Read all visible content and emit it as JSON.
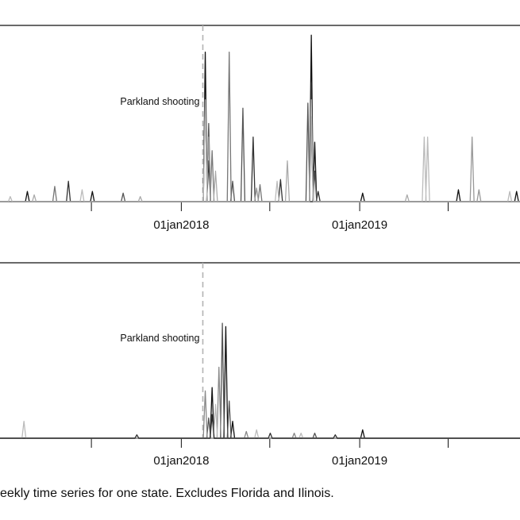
{
  "caption": "eekly time series for one state. Excludes Florida and Ilinois.",
  "chart_data": [
    {
      "type": "line",
      "x_axis": {
        "type": "date",
        "range": [
          "2016-12-26",
          "2019-11-25"
        ],
        "major_ticks": [
          {
            "date": "2018-01-01",
            "label": "01jan2018"
          },
          {
            "date": "2019-01-01",
            "label": "01jan2019"
          }
        ],
        "minor_ticks": [
          "2017-07-01",
          "2018-07-01",
          "2019-07-01"
        ]
      },
      "event_line": {
        "date": "2018-02-14",
        "label": "Parkland shooting",
        "style": "dashed"
      },
      "grid": false,
      "legend": "none",
      "y_range": [
        0,
        100
      ],
      "series": [
        {
          "color": "#111111",
          "points": [
            [
              "2017-02-20",
              6
            ],
            [
              "2017-07-03",
              6
            ],
            [
              "2018-02-19",
              88
            ],
            [
              "2018-02-26",
              24
            ],
            [
              "2018-09-24",
              98
            ],
            [
              "2018-10-01",
              35
            ],
            [
              "2019-01-07",
              5
            ],
            [
              "2019-07-22",
              7
            ],
            [
              "2019-11-18",
              6
            ]
          ]
        },
        {
          "color": "#333333",
          "points": [
            [
              "2017-05-15",
              12
            ],
            [
              "2018-02-19",
              62
            ],
            [
              "2018-05-28",
              38
            ],
            [
              "2018-07-23",
              13
            ],
            [
              "2018-09-24",
              70
            ],
            [
              "2018-10-08",
              6
            ]
          ]
        },
        {
          "color": "#555555",
          "points": [
            [
              "2017-09-04",
              5
            ],
            [
              "2018-02-26",
              46
            ],
            [
              "2018-04-16",
              12
            ],
            [
              "2018-05-07",
              55
            ],
            [
              "2018-09-17",
              58
            ],
            [
              "2018-10-01",
              18
            ]
          ]
        },
        {
          "color": "#777777",
          "points": [
            [
              "2017-04-17",
              9
            ],
            [
              "2018-03-05",
              30
            ],
            [
              "2018-04-09",
              88
            ],
            [
              "2018-06-11",
              10
            ],
            [
              "2018-09-24",
              42
            ]
          ]
        },
        {
          "color": "#999999",
          "points": [
            [
              "2018-02-26",
              38
            ],
            [
              "2018-06-04",
              8
            ],
            [
              "2018-09-24",
              44
            ],
            [
              "2019-08-19",
              38
            ],
            [
              "2019-09-02",
              7
            ]
          ]
        },
        {
          "color": "#bbbbbb",
          "points": [
            [
              "2017-01-16",
              3
            ],
            [
              "2017-06-12",
              7
            ],
            [
              "2018-02-19",
              60
            ],
            [
              "2018-07-16",
              12
            ],
            [
              "2018-09-24",
              60
            ],
            [
              "2019-05-13",
              38
            ],
            [
              "2019-05-20",
              38
            ],
            [
              "2019-11-04",
              6
            ]
          ]
        },
        {
          "color": "#aaaaaa",
          "points": [
            [
              "2017-03-06",
              4
            ],
            [
              "2017-10-09",
              3
            ],
            [
              "2018-03-12",
              18
            ],
            [
              "2018-08-06",
              24
            ],
            [
              "2018-09-24",
              50
            ],
            [
              "2019-04-08",
              4
            ]
          ]
        }
      ]
    },
    {
      "type": "line",
      "x_axis": {
        "type": "date",
        "range": [
          "2016-12-26",
          "2019-11-25"
        ],
        "major_ticks": [
          {
            "date": "2018-01-01",
            "label": "01jan2018"
          },
          {
            "date": "2019-01-01",
            "label": "01jan2019"
          }
        ],
        "minor_ticks": [
          "2017-07-01",
          "2018-07-01",
          "2019-07-01"
        ]
      },
      "event_line": {
        "date": "2018-02-14",
        "label": "Parkland shooting",
        "style": "dashed"
      },
      "grid": false,
      "legend": "none",
      "y_range": [
        0,
        100
      ],
      "series": [
        {
          "color": "#111111",
          "points": [
            [
              "2018-03-05",
              30
            ],
            [
              "2018-04-02",
              66
            ],
            [
              "2018-04-16",
              10
            ],
            [
              "2019-01-07",
              5
            ]
          ]
        },
        {
          "color": "#555555",
          "points": [
            [
              "2018-02-26",
              12
            ],
            [
              "2018-03-26",
              68
            ],
            [
              "2018-04-09",
              22
            ],
            [
              "2018-10-01",
              3
            ]
          ]
        },
        {
          "color": "#888888",
          "points": [
            [
              "2018-02-19",
              28
            ],
            [
              "2018-03-19",
              42
            ],
            [
              "2018-05-14",
              4
            ],
            [
              "2018-08-20",
              3
            ]
          ]
        },
        {
          "color": "#bbbbbb",
          "points": [
            [
              "2017-02-13",
              10
            ],
            [
              "2018-03-12",
              20
            ],
            [
              "2018-06-04",
              5
            ],
            [
              "2018-09-03",
              3
            ]
          ]
        },
        {
          "color": "#333333",
          "points": [
            [
              "2017-10-02",
              2
            ],
            [
              "2018-03-05",
              14
            ],
            [
              "2018-07-02",
              3
            ],
            [
              "2018-11-12",
              2
            ]
          ]
        }
      ]
    }
  ]
}
